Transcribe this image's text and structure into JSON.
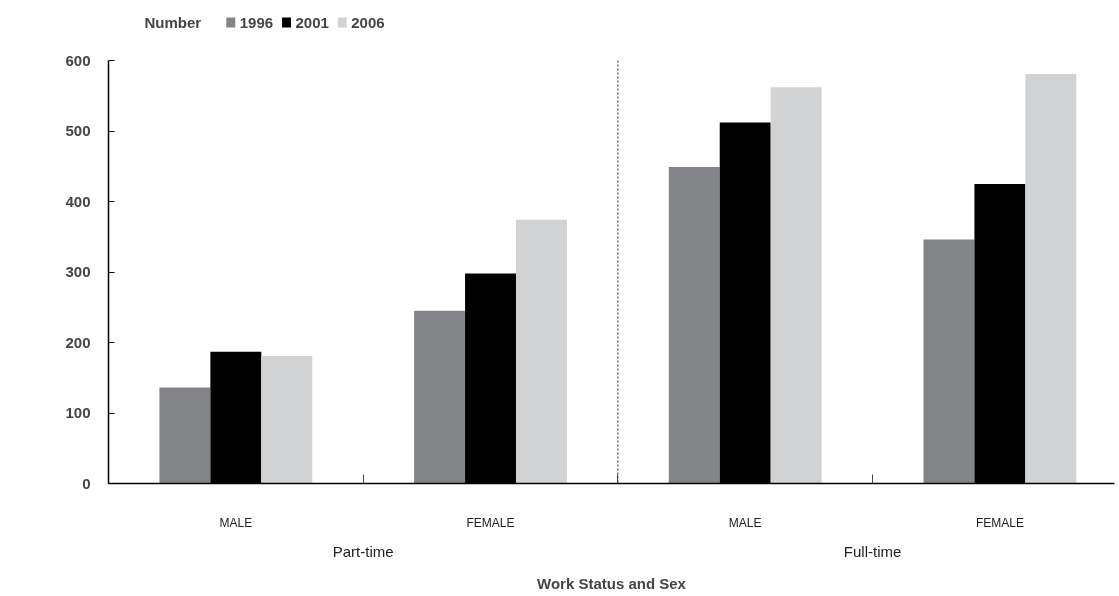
{
  "chart_data": {
    "type": "bar",
    "ylabel": "Number",
    "xlabel": "Work Status and Sex",
    "categories": [
      "MALE",
      "FEMALE",
      "MALE",
      "FEMALE"
    ],
    "series": [
      {
        "name": "1996",
        "color": "#838488",
        "values": [
          136,
          245,
          449,
          346
        ]
      },
      {
        "name": "2001",
        "color": "#000000",
        "values": [
          187,
          298,
          512,
          425
        ]
      },
      {
        "name": "2006",
        "color": "#d1d2d4",
        "values": [
          181,
          374,
          562,
          581
        ]
      }
    ],
    "ylim": [
      0,
      600
    ],
    "yticks": [
      0,
      100,
      200,
      300,
      400,
      500,
      600
    ],
    "grid": false,
    "legend": "top left",
    "annotations": [
      "Part-time",
      "Full-time"
    ]
  }
}
